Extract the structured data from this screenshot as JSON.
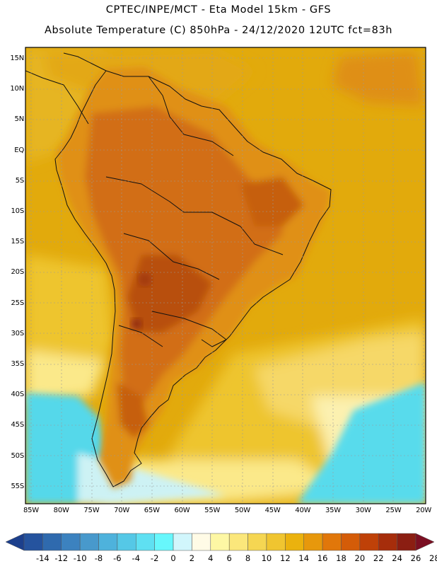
{
  "title_line1": "CPTEC/INPE/MCT -  Eta Model 15km - GFS",
  "title_line2": "Absolute Temperature (C) 850hPa - 24/12/2020 12UTC fct=83h",
  "colors": {
    "ocean_dark": "#e2aa0c",
    "temp_mid": "#eec52e",
    "temp_light": "#fbe98a",
    "land_warm": "#e09018",
    "land_hot": "#d26e12",
    "land_hotter": "#b8500f",
    "cold_cyan": "#55d8ea",
    "grid": "#9a9a9a"
  },
  "map": {
    "lat_labels": [
      "15N",
      "10N",
      "5N",
      "EQ",
      "5S",
      "10S",
      "15S",
      "20S",
      "25S",
      "30S",
      "35S",
      "40S",
      "45S",
      "50S",
      "55S"
    ],
    "lon_labels": [
      "85W",
      "80W",
      "75W",
      "70W",
      "65W",
      "60W",
      "55W",
      "50W",
      "45W",
      "40W",
      "35W",
      "30W",
      "25W",
      "20W"
    ]
  },
  "colorbar": {
    "colors": [
      "#1c3f8c",
      "#25539e",
      "#2f6aae",
      "#3c82bf",
      "#4899cc",
      "#4eb2dc",
      "#55c8e6",
      "#5fe0f2",
      "#67f7fc",
      "#d1f6fc",
      "#fffbe6",
      "#fdf7a4",
      "#fbe77b",
      "#f5d652",
      "#f0c530",
      "#ebb20e",
      "#e7980c",
      "#e1770a",
      "#d45c08",
      "#bf4108",
      "#a62d0b",
      "#8b1e12",
      "#7b0f22"
    ],
    "labels": [
      "-14",
      "-12",
      "-10",
      "-8",
      "-6",
      "-4",
      "-2",
      "0",
      "2",
      "4",
      "6",
      "8",
      "10",
      "12",
      "14",
      "16",
      "18",
      "20",
      "22",
      "24",
      "26",
      "28"
    ]
  }
}
